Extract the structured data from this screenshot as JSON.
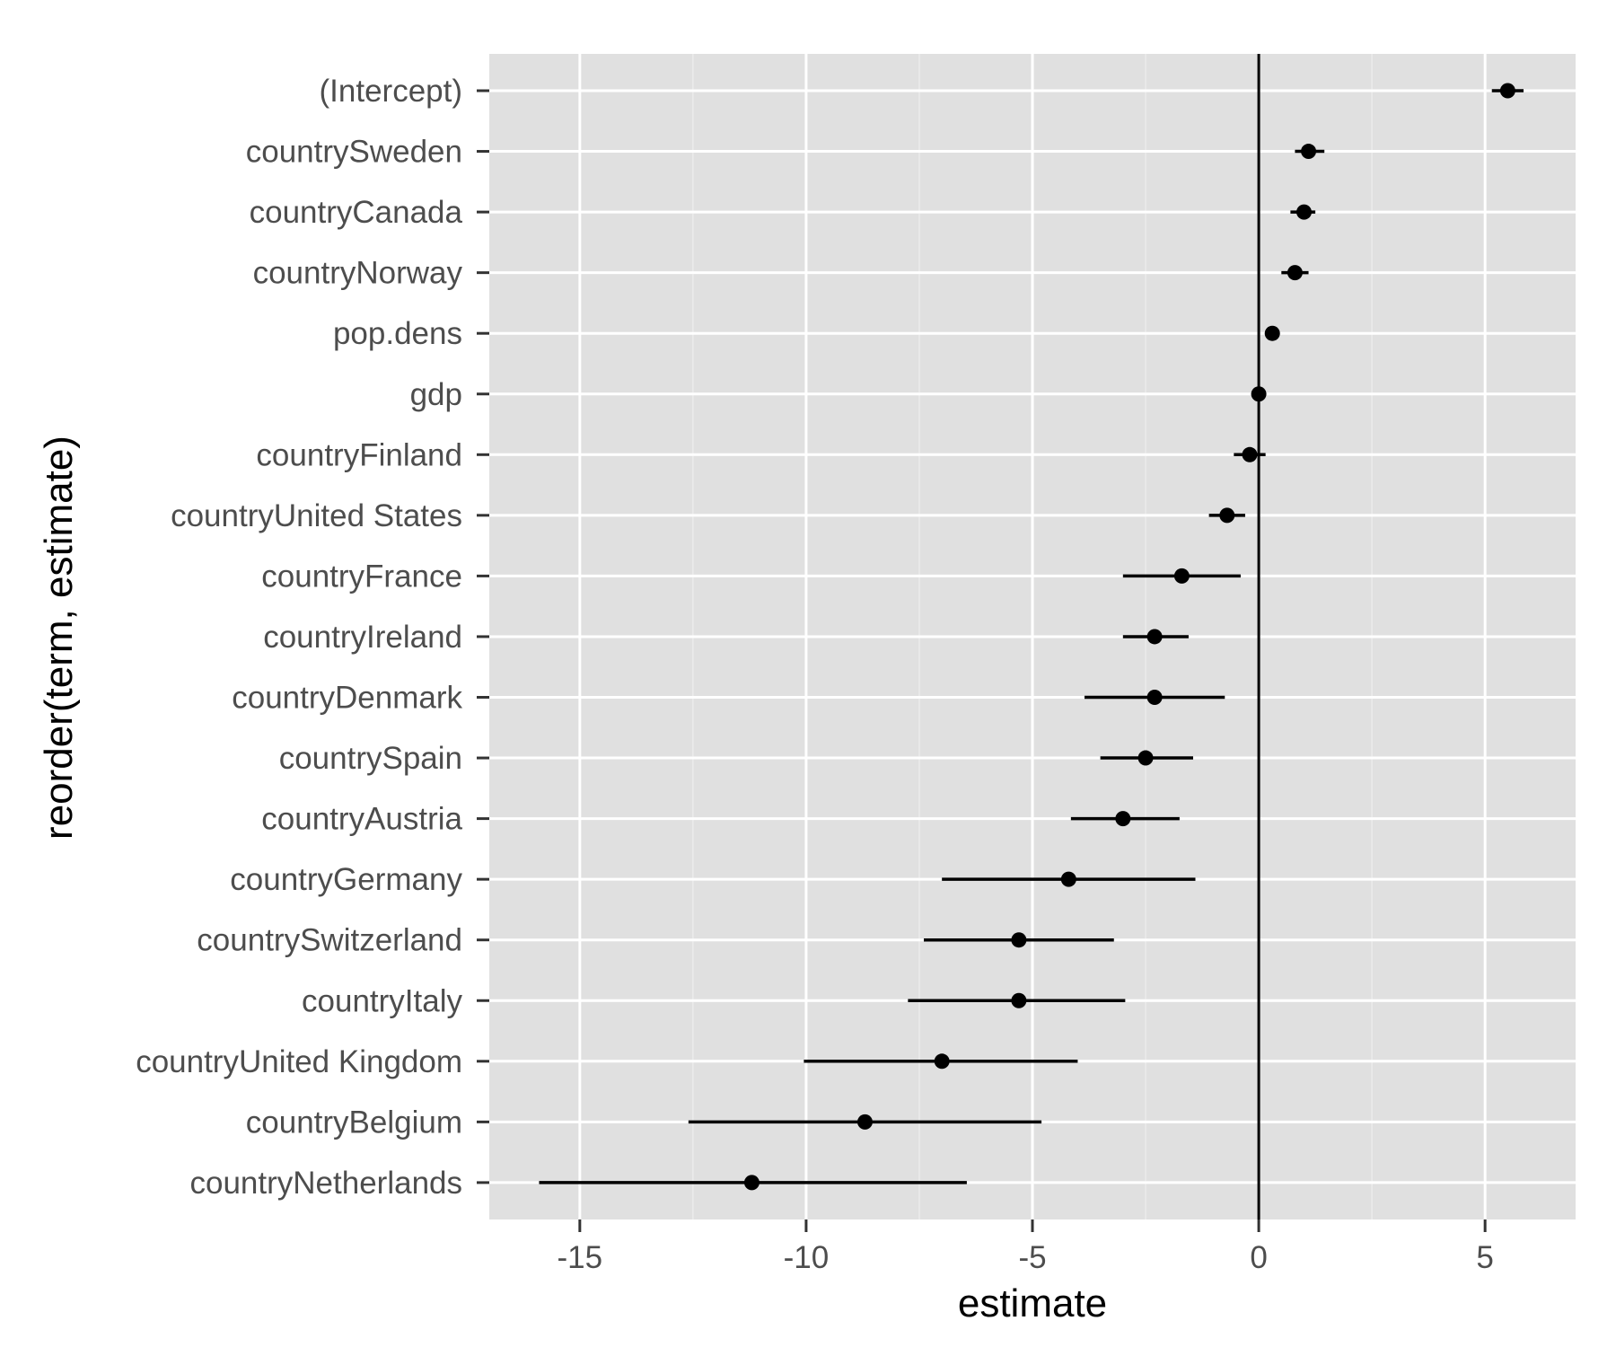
{
  "chart_data": {
    "type": "scatter",
    "xlabel": "estimate",
    "ylabel": "reorder(term, estimate)",
    "xlim": [
      -17,
      7
    ],
    "xticks": [
      -15,
      -10,
      -5,
      0,
      5
    ],
    "xtick_labels": [
      "-15",
      "-10",
      "-5",
      "0",
      "5"
    ],
    "reference_line_x": 0,
    "grid": true,
    "colors": {
      "panel": "#e0e0e0",
      "grid": "#ffffff",
      "marks": "#000000"
    },
    "terms": [
      "(Intercept)",
      "countrySweden",
      "countryCanada",
      "countryNorway",
      "pop.dens",
      "gdp",
      "countryFinland",
      "countryUnited States",
      "countryFrance",
      "countryIreland",
      "countryDenmark",
      "countrySpain",
      "countryAustria",
      "countryGermany",
      "countrySwitzerland",
      "countryItaly",
      "countryUnited Kingdom",
      "countryBelgium",
      "countryNetherlands"
    ],
    "estimate": [
      5.5,
      1.1,
      1.0,
      0.8,
      0.3,
      0.0,
      -0.2,
      -0.7,
      -1.7,
      -2.3,
      -2.3,
      -2.5,
      -3.0,
      -4.2,
      -5.3,
      -5.3,
      -7.0,
      -8.7,
      -11.2
    ],
    "conf_low": [
      5.15,
      0.8,
      0.7,
      0.5,
      0.25,
      -0.02,
      -0.55,
      -1.1,
      -3.0,
      -3.0,
      -3.85,
      -3.5,
      -4.15,
      -7.0,
      -7.4,
      -7.75,
      -10.05,
      -12.6,
      -15.9
    ],
    "conf_high": [
      5.85,
      1.45,
      1.25,
      1.1,
      0.35,
      0.02,
      0.15,
      -0.3,
      -0.4,
      -1.55,
      -0.75,
      -1.45,
      -1.75,
      -1.4,
      -3.2,
      -2.95,
      -4.0,
      -4.8,
      -6.45
    ]
  }
}
